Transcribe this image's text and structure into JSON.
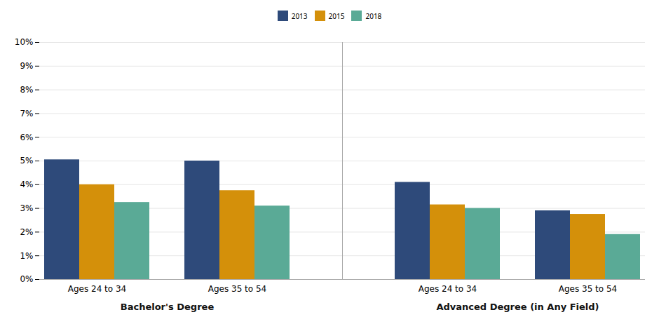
{
  "chart_data": {
    "type": "bar",
    "categories": [
      "Ages 24 to 34",
      "Ages 35 to 54",
      "Ages 24 to 34",
      "Ages 35 to 54"
    ],
    "sections": [
      "Bachelor's Degree",
      "Bachelor's Degree",
      "Advanced Degree (in Any Field)",
      "Advanced Degree (in Any Field)"
    ],
    "series": [
      {
        "name": "2013",
        "color": "#2e4a7a",
        "values": [
          5.05,
          5.0,
          4.1,
          2.9
        ]
      },
      {
        "name": "2015",
        "color": "#d4900a",
        "values": [
          4.0,
          3.75,
          3.15,
          2.75
        ]
      },
      {
        "name": "2018",
        "color": "#5aaa96",
        "values": [
          3.25,
          3.1,
          3.0,
          1.9
        ]
      }
    ],
    "ylim": [
      0,
      10
    ],
    "yticks": [
      {
        "value": 0,
        "label": "0%"
      },
      {
        "value": 1,
        "label": "1%"
      },
      {
        "value": 2,
        "label": "2%"
      },
      {
        "value": 3,
        "label": "3%"
      },
      {
        "value": 4,
        "label": "4%"
      },
      {
        "value": 5,
        "label": "5%"
      },
      {
        "value": 6,
        "label": "6%"
      },
      {
        "value": 7,
        "label": "7%"
      },
      {
        "value": 8,
        "label": "8%"
      },
      {
        "value": 9,
        "label": "9%"
      },
      {
        "value": 10,
        "label": "10%"
      }
    ],
    "grid": true,
    "legend": "top"
  }
}
